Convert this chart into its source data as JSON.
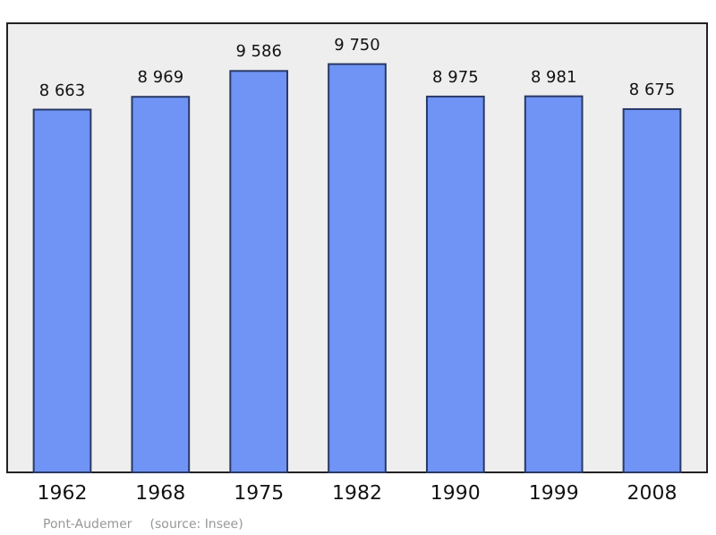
{
  "chart_data": {
    "type": "bar",
    "categories": [
      "1962",
      "1968",
      "1975",
      "1982",
      "1990",
      "1999",
      "2008"
    ],
    "values": [
      8663,
      8969,
      9586,
      9750,
      8975,
      8981,
      8675
    ],
    "value_labels": [
      "8 663",
      "8 969",
      "9 586",
      "9 750",
      "8 975",
      "8 981",
      "8 675"
    ],
    "color": "#6f94f5",
    "annotations": [
      "Pont-Audemer",
      "(source: Insee)"
    ]
  }
}
